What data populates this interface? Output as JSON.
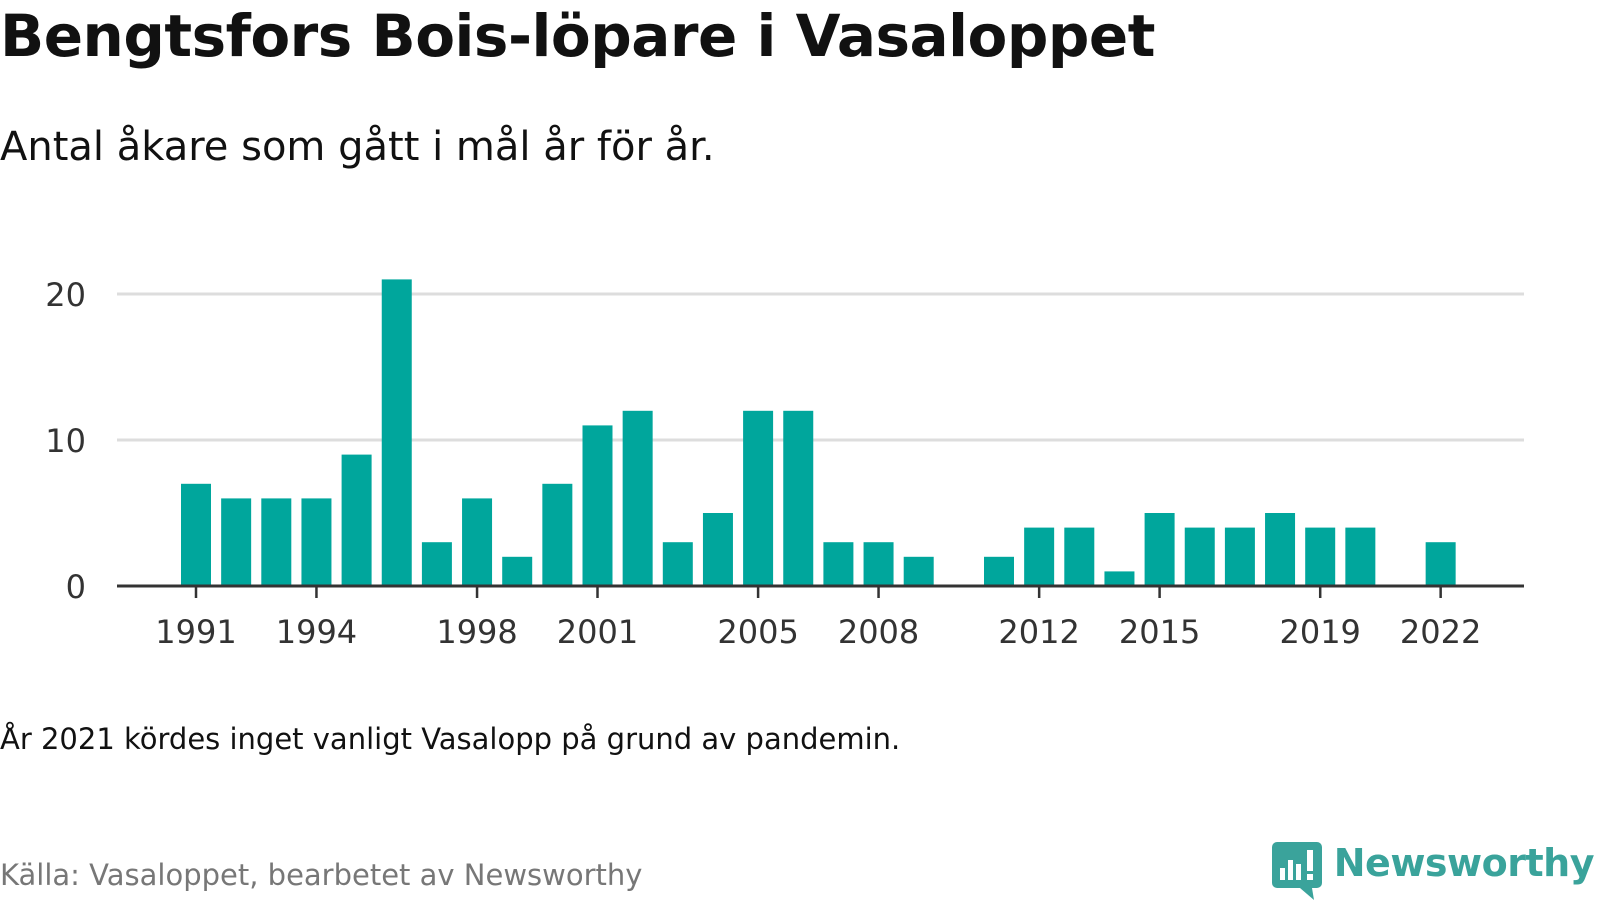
{
  "title": "Bengtsfors Bois-löpare i Vasaloppet",
  "subtitle": "Antal åkare som gått i mål år för år.",
  "note": "År 2021 kördes inget vanligt Vasalopp på grund av pandemin.",
  "source": "Källa: Vasaloppet, bearbetet av Newsworthy",
  "brand": {
    "name": "Newsworthy",
    "logo_icon": "newsworthy-chart-bubble-icon",
    "color": "#3aa39b"
  },
  "chart_data": {
    "type": "bar",
    "title": "Bengtsfors Bois-löpare i Vasaloppet",
    "subtitle": "Antal åkare som gått i mål år för år.",
    "xlabel": "",
    "ylabel": "",
    "categories": [
      1991,
      1992,
      1993,
      1994,
      1995,
      1996,
      1997,
      1998,
      1999,
      2000,
      2001,
      2002,
      2003,
      2004,
      2005,
      2006,
      2007,
      2008,
      2009,
      2010,
      2011,
      2012,
      2013,
      2014,
      2015,
      2016,
      2017,
      2018,
      2019,
      2020,
      2021,
      2022
    ],
    "values": [
      7,
      6,
      6,
      6,
      9,
      21,
      3,
      6,
      2,
      7,
      11,
      12,
      3,
      5,
      12,
      12,
      3,
      3,
      2,
      null,
      2,
      4,
      4,
      1,
      5,
      4,
      4,
      5,
      4,
      4,
      null,
      3
    ],
    "x_tick_labels": [
      "1991",
      "1994",
      "1998",
      "2001",
      "2005",
      "2008",
      "2012",
      "2015",
      "2019",
      "2022"
    ],
    "y_ticks": [
      0,
      10,
      20
    ],
    "ylim": [
      0,
      21
    ],
    "grid": "horizontal",
    "bar_color": "#00a69c",
    "gridline_color": "#dddddd",
    "axis_color": "#333333"
  }
}
